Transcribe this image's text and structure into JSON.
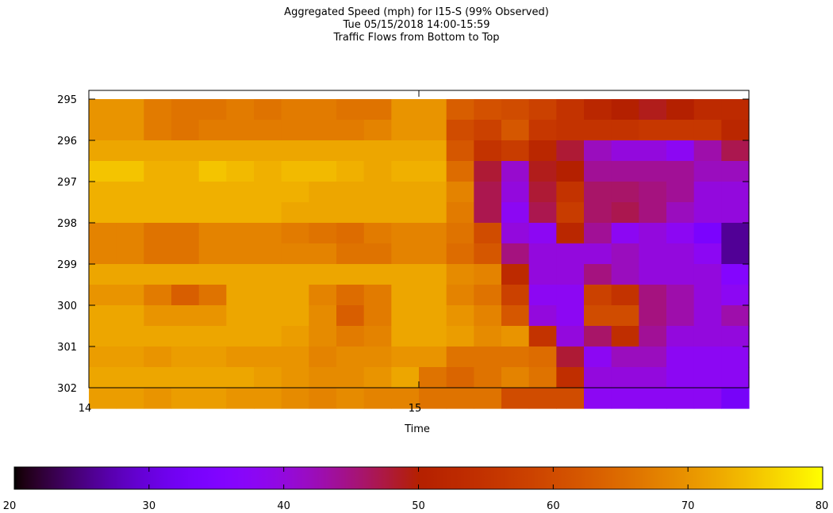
{
  "chart_data": {
    "type": "heatmap",
    "title": "Aggregated Speed (mph) for I15-S (99% Observed)",
    "subtitle": "Tue 05/15/2018 14:00-15:59",
    "subtitle2": "Traffic Flows from Bottom to Top",
    "xlabel": "Time",
    "ylabel": "",
    "x_ticks": [
      "14",
      "15"
    ],
    "y_ticks": [
      "295",
      "296",
      "297",
      "298",
      "299",
      "300",
      "301",
      "302"
    ],
    "x_range_hours": [
      14,
      15.97
    ],
    "y_range_mile": [
      295,
      302
    ],
    "time_bins": 24,
    "time_bin_minutes": 5,
    "row_height_miles": 0.5,
    "colorbar": {
      "min": 20,
      "max": 80,
      "ticks": [
        "20",
        "30",
        "40",
        "50",
        "60",
        "70",
        "80"
      ]
    },
    "speeds_mph": [
      [
        70,
        70,
        67,
        66,
        66,
        67,
        66,
        67,
        67,
        66,
        66,
        70,
        70,
        63,
        61,
        60,
        58,
        55,
        52,
        50,
        49,
        50,
        53,
        53
      ],
      [
        70,
        70,
        67,
        66,
        67,
        67,
        67,
        67,
        67,
        67,
        68,
        70,
        70,
        60,
        58,
        62,
        56,
        55,
        55,
        55,
        56,
        56,
        56,
        52
      ],
      [
        72,
        72,
        72,
        72,
        72,
        72,
        72,
        72,
        72,
        72,
        72,
        72,
        72,
        62,
        55,
        57,
        52,
        48,
        42,
        40,
        40,
        38,
        43,
        47
      ],
      [
        75,
        75,
        73,
        73,
        75,
        74,
        73,
        74,
        74,
        73,
        72,
        73,
        73,
        65,
        48,
        41,
        49,
        50,
        44,
        44,
        44,
        44,
        42,
        42
      ],
      [
        73,
        73,
        73,
        73,
        73,
        73,
        73,
        73,
        72,
        72,
        72,
        72,
        72,
        68,
        47,
        40,
        48,
        55,
        46,
        46,
        45,
        44,
        40,
        40
      ],
      [
        73,
        73,
        73,
        73,
        73,
        73,
        73,
        72,
        72,
        72,
        72,
        72,
        72,
        67,
        47,
        38,
        47,
        57,
        46,
        47,
        45,
        42,
        40,
        40
      ],
      [
        68,
        68,
        66,
        66,
        68,
        68,
        68,
        67,
        66,
        65,
        67,
        68,
        68,
        66,
        60,
        40,
        38,
        52,
        44,
        38,
        40,
        38,
        34,
        26
      ],
      [
        68,
        68,
        66,
        66,
        68,
        68,
        68,
        68,
        68,
        66,
        66,
        68,
        68,
        65,
        62,
        45,
        40,
        40,
        40,
        42,
        40,
        40,
        38,
        26
      ],
      [
        72,
        72,
        72,
        72,
        72,
        72,
        72,
        72,
        72,
        72,
        72,
        72,
        72,
        69,
        68,
        53,
        40,
        40,
        45,
        42,
        40,
        40,
        40,
        36
      ],
      [
        70,
        70,
        67,
        63,
        66,
        72,
        72,
        72,
        68,
        65,
        67,
        72,
        72,
        68,
        66,
        58,
        38,
        38,
        58,
        55,
        45,
        43,
        40,
        38
      ],
      [
        72,
        72,
        70,
        70,
        70,
        72,
        72,
        72,
        69,
        63,
        67,
        72,
        72,
        70,
        68,
        62,
        40,
        38,
        60,
        60,
        45,
        43,
        40,
        43
      ],
      [
        72,
        72,
        72,
        72,
        72,
        72,
        72,
        71,
        69,
        67,
        68,
        72,
        72,
        71,
        69,
        70,
        55,
        40,
        46,
        54,
        44,
        40,
        40,
        40
      ],
      [
        71,
        71,
        70,
        71,
        71,
        70,
        70,
        70,
        68,
        69,
        69,
        70,
        70,
        66,
        66,
        66,
        65,
        48,
        38,
        42,
        42,
        38,
        38,
        38
      ],
      [
        72,
        72,
        72,
        72,
        72,
        72,
        71,
        70,
        69,
        69,
        70,
        72,
        66,
        64,
        66,
        68,
        66,
        54,
        40,
        40,
        40,
        38,
        38,
        38
      ],
      [
        71,
        71,
        70,
        71,
        71,
        70,
        70,
        69,
        68,
        69,
        68,
        68,
        66,
        66,
        66,
        60,
        60,
        60,
        38,
        38,
        38,
        38,
        38,
        33
      ]
    ]
  }
}
